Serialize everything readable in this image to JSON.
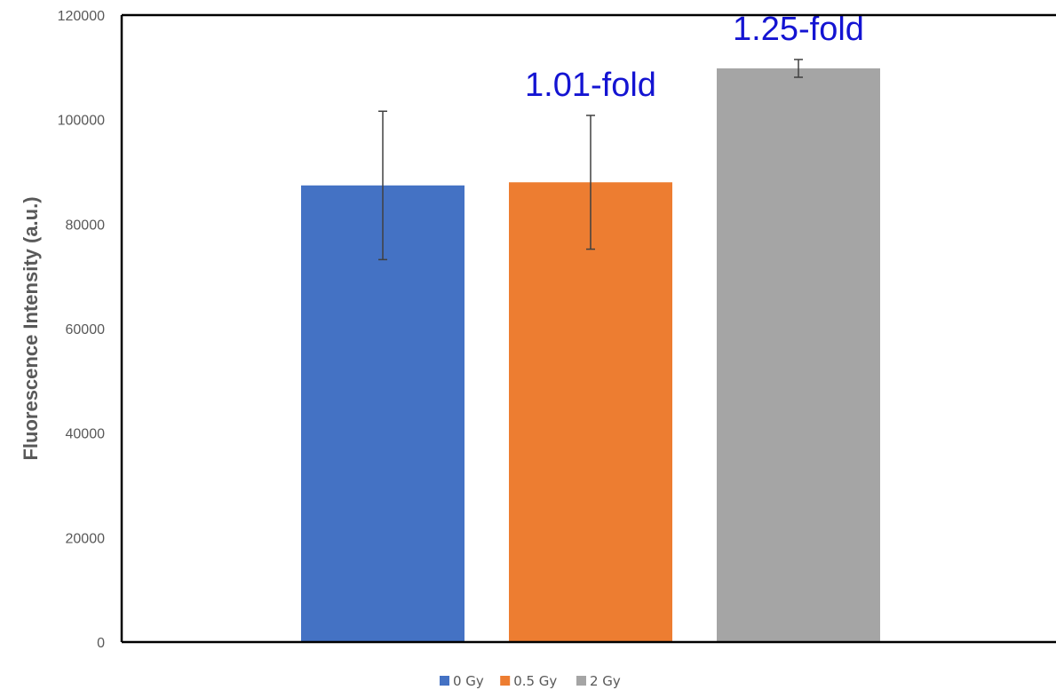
{
  "chart_data": {
    "type": "bar",
    "title": "",
    "xlabel": "",
    "ylabel": "Fluorescence Intensity (a.u.)",
    "ylim": [
      0,
      120000
    ],
    "yticks": [
      0,
      20000,
      40000,
      60000,
      80000,
      100000,
      120000
    ],
    "grid": false,
    "legend_position": "bottom",
    "series": [
      {
        "name": "0 Gy",
        "value": 87400,
        "error": 14200,
        "color": "#4472C4",
        "annotation": ""
      },
      {
        "name": "0.5 Gy",
        "value": 88000,
        "error": 12800,
        "color": "#ED7D31",
        "annotation": "1.01-fold"
      },
      {
        "name": "2 Gy",
        "value": 109800,
        "error": 1700,
        "color": "#A5A5A5",
        "annotation": "1.25-fold"
      }
    ]
  }
}
